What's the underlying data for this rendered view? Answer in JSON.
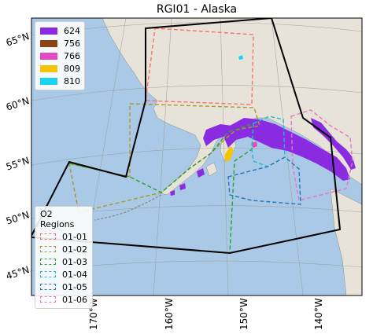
{
  "title": "RGI01 - Alaska",
  "lat_labels": [
    "65°N",
    "60°N",
    "55°N",
    "50°N",
    "45°N"
  ],
  "lon_labels": [
    "170°W",
    "160°W",
    "150°W",
    "140°W"
  ],
  "rgi_legend": [
    {
      "label": "624",
      "color": "#8a2be2"
    },
    {
      "label": "756",
      "color": "#8b4513"
    },
    {
      "label": "766",
      "color": "#e44ac0"
    },
    {
      "label": "809",
      "color": "#f5c400"
    },
    {
      "label": "810",
      "color": "#19d3f3"
    }
  ],
  "o2_legend": {
    "title": "O2 Regions",
    "items": [
      {
        "label": "01-01",
        "color": "#ff6e6e"
      },
      {
        "label": "01-02",
        "color": "#a89a2a"
      },
      {
        "label": "01-03",
        "color": "#2ca02c"
      },
      {
        "label": "01-04",
        "color": "#17becf"
      },
      {
        "label": "01-05",
        "color": "#1f77b4"
      },
      {
        "label": "01-06",
        "color": "#e377c2"
      }
    ]
  },
  "colors": {
    "ocean": "#a9c9e6",
    "land": "#e7e3d8",
    "boundary": "#000000"
  }
}
